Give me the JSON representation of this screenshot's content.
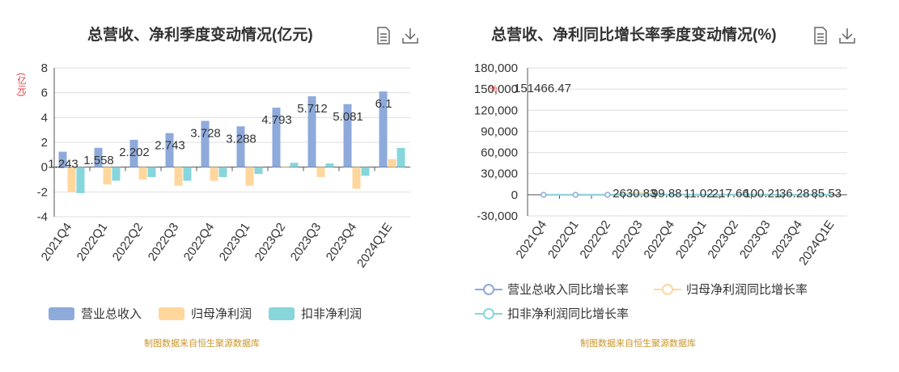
{
  "left": {
    "title": "总营收、净利季度变动情况(亿元)",
    "unit": "(亿元)",
    "source": "制图数据来自恒生聚源数据库",
    "legend": [
      "营业总收入",
      "归母净利润",
      "扣非净利润"
    ]
  },
  "right": {
    "title": "总营收、净利同比增长率季度变动情况(%)",
    "unit": "%",
    "source": "制图数据来自恒生聚源数据库",
    "legend": [
      "营业总收入同比增长率",
      "归母净利润同比增长率",
      "扣非净利润同比增长率"
    ]
  },
  "colors": {
    "revenue": "#8eaadb",
    "net_profit": "#ffd79c",
    "deducted_profit": "#87d6dc",
    "axis": "#555555",
    "grid": "#dddddd"
  },
  "chart_data": [
    {
      "type": "bar",
      "title": "总营收、净利季度变动情况(亿元)",
      "ylabel": "(亿元)",
      "ylim": [
        -4,
        8
      ],
      "yticks": [
        -4,
        -2,
        0,
        2,
        4,
        6,
        8
      ],
      "categories": [
        "2021Q4",
        "2022Q1",
        "2022Q2",
        "2022Q3",
        "2022Q4",
        "2023Q1",
        "2023Q2",
        "2023Q3",
        "2023Q4",
        "2024Q1E"
      ],
      "series": [
        {
          "name": "营业总收入",
          "values": [
            1.243,
            1.558,
            2.202,
            2.743,
            3.728,
            3.288,
            4.793,
            5.712,
            5.081,
            6.1
          ]
        },
        {
          "name": "归母净利润",
          "values": [
            -2.0,
            -1.4,
            -1.0,
            -1.5,
            -1.1,
            -1.5,
            0.05,
            -0.8,
            -1.75,
            0.65
          ]
        },
        {
          "name": "扣非净利润",
          "values": [
            -2.1,
            -1.1,
            -0.8,
            -1.1,
            -0.8,
            -0.55,
            0.35,
            0.3,
            -0.7,
            1.55
          ]
        }
      ],
      "data_labels": [
        "1.243",
        "1.558",
        "2.202",
        "2.743",
        "3.728",
        "3.288",
        "4.793",
        "5.712",
        "5.081",
        "6.1"
      ],
      "grid": true,
      "legend_position": "bottom"
    },
    {
      "type": "line",
      "title": "总营收、净利同比增长率季度变动情况(%)",
      "ylabel": "%",
      "ylim": [
        -30000,
        180000
      ],
      "yticks": [
        "-30,000",
        "0",
        "30,000",
        "60,000",
        "90,000",
        "120,000",
        "150,000",
        "180,000"
      ],
      "categories": [
        "2021Q4",
        "2022Q1",
        "2022Q2",
        "2022Q3",
        "2022Q4",
        "2023Q1",
        "2023Q2",
        "2023Q3",
        "2023Q4",
        "2024Q1E"
      ],
      "series": [
        {
          "name": "营业总收入同比增长率",
          "values": [
            0,
            0,
            0,
            120,
            100,
            80,
            50,
            40,
            36,
            35
          ]
        },
        {
          "name": "归母净利润同比增长率",
          "values": [
            0,
            0,
            0,
            2630.83,
            99.88,
            11.02,
            217.66,
            100.21,
            36.28,
            85.53
          ]
        },
        {
          "name": "扣非净利润同比增长率",
          "values": [
            0,
            0,
            0,
            300,
            150,
            80,
            200,
            110,
            50,
            90
          ]
        }
      ],
      "data_labels": [
        "2630.83",
        "99.88",
        "11.02",
        "217.66",
        "100.21",
        "36.28",
        "85.53"
      ],
      "annotation": "151466.47",
      "grid": true,
      "legend_position": "bottom"
    }
  ]
}
